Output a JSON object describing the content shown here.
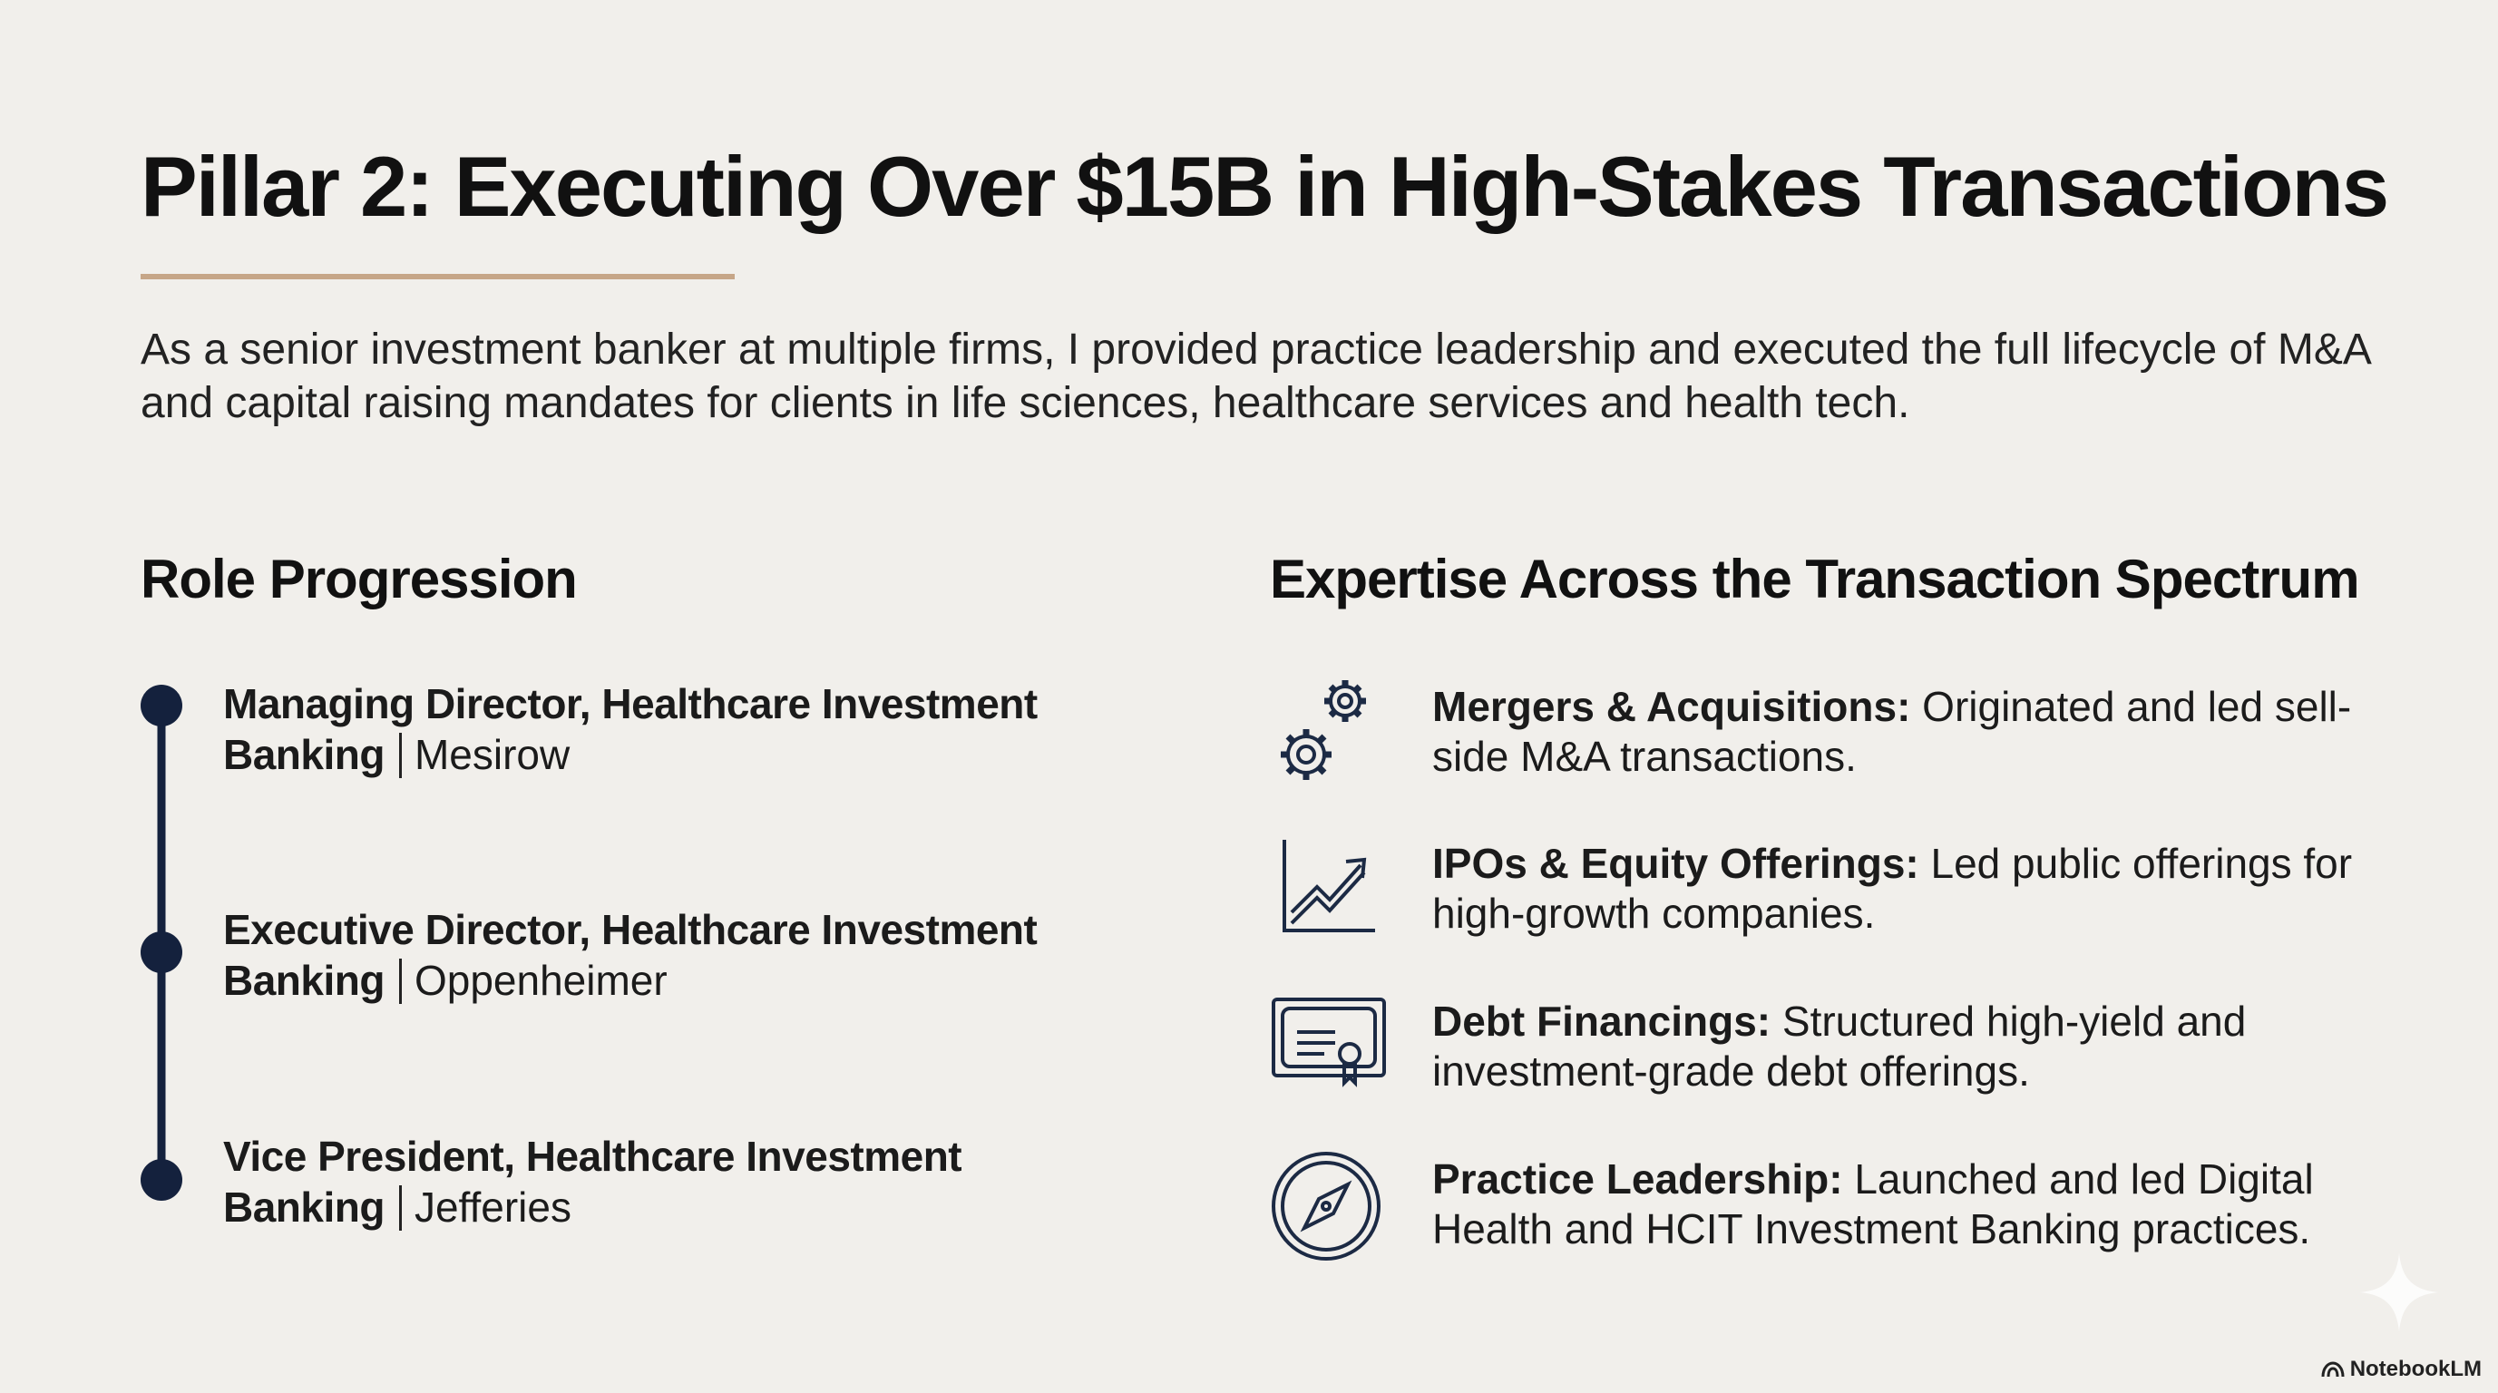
{
  "title": "Pillar 2: Executing Over $15B in High-Stakes Transactions",
  "intro": "As a senior investment banker at multiple firms, I provided practice leadership and executed the full lifecycle of M&A and capital raising mandates for clients in life sciences, healthcare services and health tech.",
  "roles": {
    "heading": "Role Progression",
    "items": [
      {
        "title": "Managing Director, Healthcare Investment Banking",
        "firm": "Mesirow"
      },
      {
        "title": "Executive Director, Healthcare Investment Banking",
        "firm": "Oppenheimer"
      },
      {
        "title": "Vice President, Healthcare Investment Banking",
        "firm": "Jefferies"
      }
    ]
  },
  "expertise": {
    "heading": "Expertise Across the Transaction Spectrum",
    "items": [
      {
        "name": "Mergers & Acquisitions:",
        "text": "Originated and led sell-side M&A transactions."
      },
      {
        "name": "IPOs & Equity Offerings:",
        "text": "Led public offerings for high-growth companies."
      },
      {
        "name": "Debt Financings:",
        "text": "Structured high-yield and investment-grade debt offerings."
      },
      {
        "name": "Practice Leadership:",
        "text": "Launched and led Digital Health and HCIT Investment Banking practices."
      }
    ]
  },
  "watermark": "NotebookLM"
}
